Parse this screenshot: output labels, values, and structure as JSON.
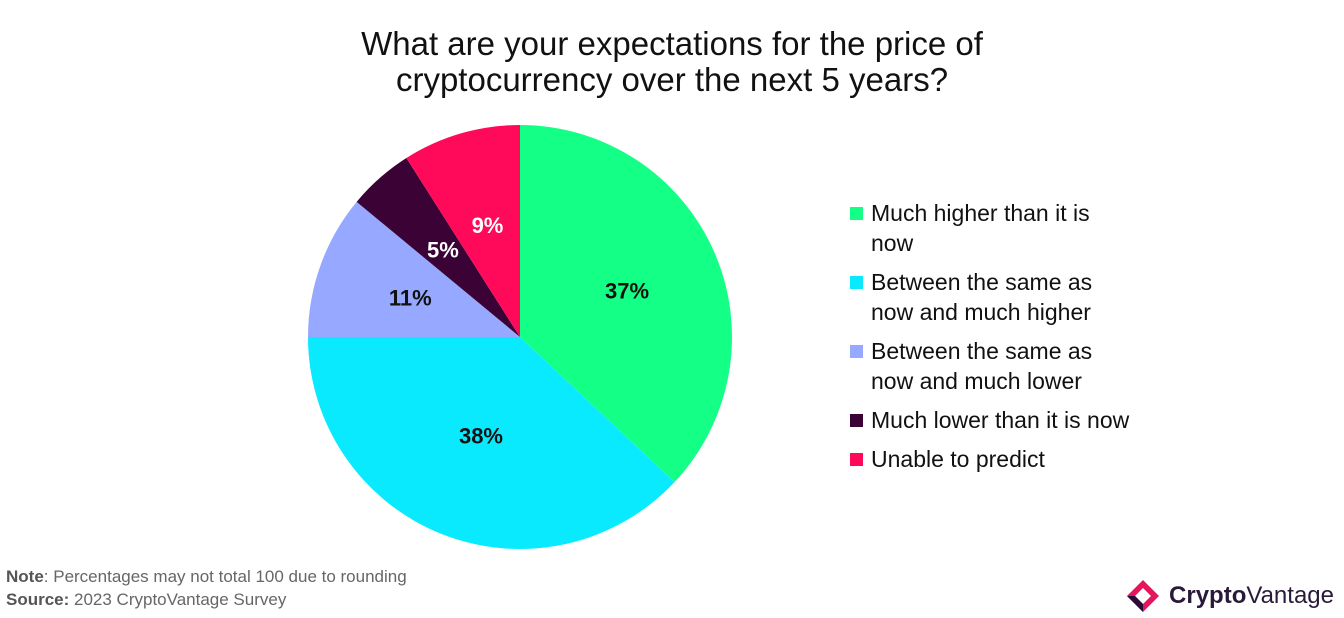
{
  "title_lines": [
    "What are your expectations for the price of",
    "cryptocurrency over the next 5 years?"
  ],
  "chart_data": {
    "type": "pie",
    "categories": [
      "Much higher than it is now",
      "Between the same as now and much higher",
      "Between the same as now and much lower",
      "Much lower than it is now",
      "Unable to predict"
    ],
    "values": [
      37,
      38,
      11,
      5,
      9
    ],
    "value_labels": [
      "37%",
      "38%",
      "11%",
      "5%",
      "9%"
    ],
    "colors": [
      "#13FF85",
      "#0AEAFF",
      "#96A8FF",
      "#3A0235",
      "#FF0A5A"
    ],
    "label_colors": [
      "#111111",
      "#111111",
      "#111111",
      "#ffffff",
      "#ffffff"
    ],
    "legend_position": "right",
    "legend_lines": [
      [
        "Much higher than it is",
        "now"
      ],
      [
        "Between the same as",
        "now and much higher"
      ],
      [
        "Between the same as",
        "now and much lower"
      ],
      [
        "Much lower than it is now"
      ],
      [
        "Unable to predict"
      ]
    ]
  },
  "footnote": {
    "note_label": "Note",
    "note_text": ": Percentages may not total 100 due to rounding",
    "source_label": "Source:",
    "source_text": " 2023 CryptoVantage Survey"
  },
  "brand": {
    "part1": "Crypto",
    "part2": "Vantage",
    "colors": [
      "#E4155B",
      "#2A0B3A"
    ]
  }
}
